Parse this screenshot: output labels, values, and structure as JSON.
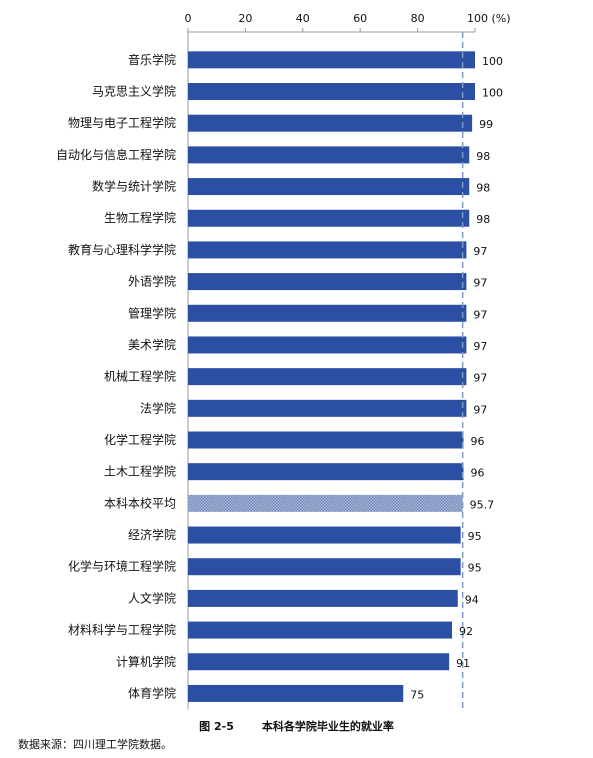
{
  "chart_data": {
    "type": "bar",
    "orientation": "horizontal",
    "categories": [
      "音乐学院",
      "马克思主义学院",
      "物理与电子工程学院",
      "自动化与信息工程学院",
      "数学与统计学院",
      "生物工程学院",
      "教育与心理科学学院",
      "外语学院",
      "管理学院",
      "美术学院",
      "机械工程学院",
      "法学院",
      "化学工程学院",
      "土木工程学院",
      "本科本校平均",
      "经济学院",
      "化学与环境工程学院",
      "人文学院",
      "材料科学与工程学院",
      "计算机学院",
      "体育学院"
    ],
    "values": [
      100,
      100,
      99,
      98,
      98,
      98,
      97,
      97,
      97,
      97,
      97,
      97,
      96,
      96,
      95.7,
      95,
      95,
      94,
      92,
      91,
      75
    ],
    "value_labels": [
      "100",
      "100",
      "99",
      "98",
      "98",
      "98",
      "97",
      "97",
      "97",
      "97",
      "97",
      "97",
      "96",
      "96",
      "95.7",
      "95",
      "95",
      "94",
      "92",
      "91",
      "75"
    ],
    "highlight_category": "本科本校平均",
    "reference_line": 95.7,
    "xlim": [
      0,
      100
    ],
    "xticks": [
      "0",
      "20",
      "40",
      "60",
      "80",
      "100"
    ],
    "xunit": "(%)",
    "axis_position": "top",
    "grid": false,
    "colors": {
      "bar": "#2b4fa3",
      "average_pattern": "#8fa3c7",
      "reference_line": "#7d9bc4"
    }
  },
  "caption": {
    "number": "图 2-5",
    "title": "本科各学院毕业生的就业率"
  },
  "source_note": "数据来源：四川理工学院数据。"
}
